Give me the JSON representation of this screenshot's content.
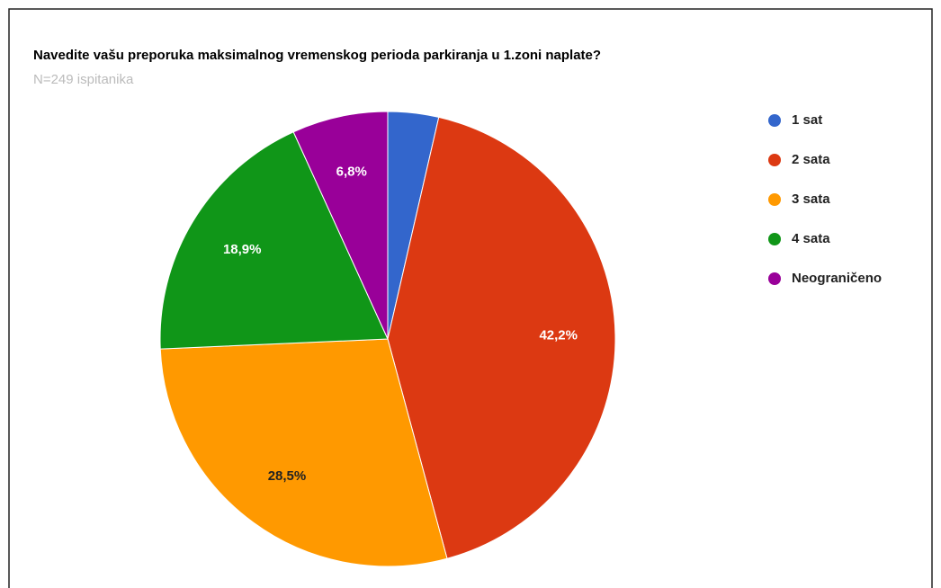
{
  "chart_data": {
    "type": "pie",
    "title": "Navedite vašu preporuka maksimalnog vremenskog perioda parkiranja u 1.zoni naplate?",
    "subtitle": "N=249 ispitanika",
    "categories": [
      "1 sat",
      "2 sata",
      "3 sata",
      "4 sata",
      "Neograničeno"
    ],
    "values": [
      3.6,
      42.2,
      28.5,
      18.9,
      6.8
    ],
    "value_labels": [
      null,
      "42,2%",
      "28,5%",
      "18,9%",
      "6,8%"
    ],
    "colors": [
      "#3366cc",
      "#dc3912",
      "#ff9900",
      "#109618",
      "#990099"
    ],
    "legend": "right"
  }
}
